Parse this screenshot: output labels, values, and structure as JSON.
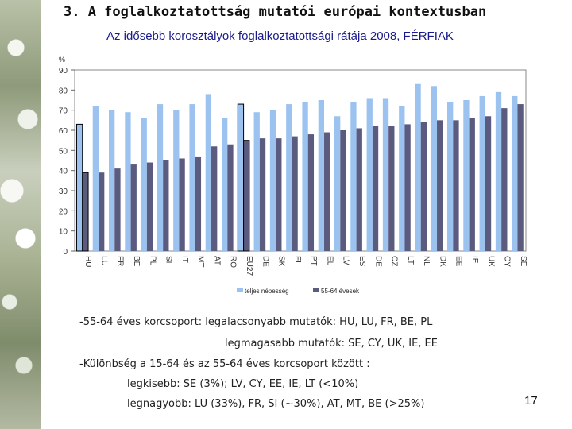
{
  "slide": {
    "title": "3. A foglalkoztatottság mutatói európai kontextusban",
    "page_number": "17"
  },
  "notes": {
    "line1": "-55-64 éves korcsoport: legalacsonyabb mutatók: HU, LU, FR, BE, PL",
    "line2": "legmagasabb mutatók: SE, CY, UK, IE, EE",
    "line3": "-Különbség a 15-64 és az 55-64 éves korcsoport között :",
    "line4": "legkisebb: SE (3%); LV, CY, EE, IE, LT (<10%)",
    "line5": "legnagyobb: LU (33%), FR, SI (~30%), AT, MT, BE (>25%)"
  },
  "chart_data": {
    "type": "bar",
    "title": "Az idősebb korosztályok foglalkoztatottsági rátája 2008, FÉRFIAK",
    "ylabel": "%",
    "ylim": [
      0,
      90
    ],
    "yticks": [
      0,
      10,
      20,
      30,
      40,
      50,
      60,
      70,
      80,
      90
    ],
    "categories": [
      "HU",
      "LU",
      "FR",
      "BE",
      "PL",
      "SI",
      "IT",
      "MT",
      "AT",
      "RO",
      "EU27",
      "DE",
      "SK",
      "FI",
      "PT",
      "EL",
      "LV",
      "ES",
      "DE",
      "CZ",
      "LT",
      "NL",
      "DK",
      "EE",
      "IE",
      "UK",
      "CY",
      "SE"
    ],
    "highlight": [
      "HU",
      "EU27"
    ],
    "series": [
      {
        "name": "teljes népesség",
        "color": "#9cc3f0",
        "values": [
          63,
          72,
          70,
          69,
          66,
          73,
          70,
          73,
          78,
          66,
          73,
          69,
          70,
          73,
          74,
          75,
          67,
          74,
          76,
          76,
          72,
          83,
          82,
          74,
          75,
          77,
          79,
          77
        ]
      },
      {
        "name": "55-64 évesek",
        "color": "#5b5b80",
        "values": [
          39,
          39,
          41,
          43,
          44,
          45,
          46,
          47,
          52,
          53,
          55,
          56,
          56,
          57,
          58,
          59,
          60,
          61,
          62,
          62,
          63,
          64,
          65,
          65,
          66,
          67,
          71,
          73
        ]
      }
    ],
    "legend_position": "bottom"
  }
}
